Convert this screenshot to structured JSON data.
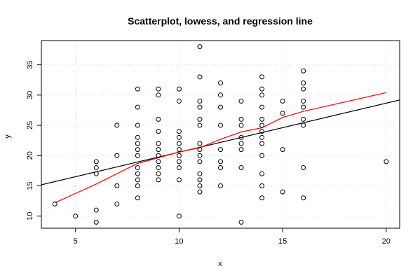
{
  "chart_data": {
    "type": "scatter",
    "title": "Scatterplot, lowess, and regression line",
    "xlabel": "x",
    "ylabel": "y",
    "xlim": [
      3.35,
      20.65
    ],
    "ylim": [
      8.0,
      39.0
    ],
    "x_ticks": [
      5,
      10,
      15,
      20
    ],
    "y_ticks": [
      10,
      15,
      20,
      25,
      30,
      35
    ],
    "x_tick_labels": [
      "5",
      "10",
      "15",
      "20"
    ],
    "y_tick_labels": [
      "10",
      "15",
      "20",
      "25",
      "30",
      "35"
    ],
    "grid": true,
    "colors": {
      "points": "#000000",
      "regression": "#000000",
      "lowess": "#ff0000",
      "grid": "#d9d9d9"
    },
    "points": [
      [
        4,
        12
      ],
      [
        5,
        10
      ],
      [
        6,
        19
      ],
      [
        6,
        18
      ],
      [
        6,
        17
      ],
      [
        6,
        11
      ],
      [
        6,
        9
      ],
      [
        7,
        25
      ],
      [
        7,
        20
      ],
      [
        7,
        15
      ],
      [
        7,
        12
      ],
      [
        8,
        31
      ],
      [
        8,
        28
      ],
      [
        8,
        25
      ],
      [
        8,
        23
      ],
      [
        8,
        22
      ],
      [
        8,
        21
      ],
      [
        8,
        20
      ],
      [
        8,
        18
      ],
      [
        8,
        17
      ],
      [
        8,
        16
      ],
      [
        8,
        15
      ],
      [
        8,
        13
      ],
      [
        9,
        31
      ],
      [
        9,
        30
      ],
      [
        9,
        26
      ],
      [
        9,
        24
      ],
      [
        9,
        22
      ],
      [
        9,
        21
      ],
      [
        9,
        20
      ],
      [
        9,
        19
      ],
      [
        9,
        18
      ],
      [
        9,
        17
      ],
      [
        9,
        16
      ],
      [
        10,
        31
      ],
      [
        10,
        29
      ],
      [
        10,
        24
      ],
      [
        10,
        23
      ],
      [
        10,
        22
      ],
      [
        10,
        21
      ],
      [
        10,
        20
      ],
      [
        10,
        19
      ],
      [
        10,
        18
      ],
      [
        10,
        16
      ],
      [
        10,
        10
      ],
      [
        11,
        38
      ],
      [
        11,
        33
      ],
      [
        11,
        29
      ],
      [
        11,
        28
      ],
      [
        11,
        26
      ],
      [
        11,
        25
      ],
      [
        11,
        22
      ],
      [
        11,
        21
      ],
      [
        11,
        20
      ],
      [
        11,
        19
      ],
      [
        11,
        17
      ],
      [
        11,
        16
      ],
      [
        11,
        15
      ],
      [
        11,
        14
      ],
      [
        12,
        32
      ],
      [
        12,
        30
      ],
      [
        12,
        28
      ],
      [
        12,
        25
      ],
      [
        12,
        21
      ],
      [
        12,
        19
      ],
      [
        12,
        18
      ],
      [
        12,
        15
      ],
      [
        13,
        29
      ],
      [
        13,
        26
      ],
      [
        13,
        25
      ],
      [
        13,
        23
      ],
      [
        13,
        22
      ],
      [
        13,
        21
      ],
      [
        13,
        18
      ],
      [
        13,
        9
      ],
      [
        14,
        33
      ],
      [
        14,
        31
      ],
      [
        14,
        30
      ],
      [
        14,
        28
      ],
      [
        14,
        26
      ],
      [
        14,
        25
      ],
      [
        14,
        24
      ],
      [
        14,
        23
      ],
      [
        14,
        22
      ],
      [
        14,
        20
      ],
      [
        14,
        17
      ],
      [
        14,
        15
      ],
      [
        14,
        13
      ],
      [
        15,
        29
      ],
      [
        15,
        27
      ],
      [
        15,
        21
      ],
      [
        15,
        14
      ],
      [
        16,
        34
      ],
      [
        16,
        32
      ],
      [
        16,
        31
      ],
      [
        16,
        29
      ],
      [
        16,
        28
      ],
      [
        16,
        26
      ],
      [
        16,
        25
      ],
      [
        16,
        18
      ],
      [
        16,
        13
      ],
      [
        20,
        19
      ]
    ],
    "regression_line": {
      "intercept": 12.46,
      "slope": 0.81
    },
    "lowess": [
      [
        4,
        12.2
      ],
      [
        6,
        15.3
      ],
      [
        8,
        18.7
      ],
      [
        10,
        20.6
      ],
      [
        11,
        21.3
      ],
      [
        12,
        22.7
      ],
      [
        13,
        23.9
      ],
      [
        14,
        24.6
      ],
      [
        15,
        26.3
      ],
      [
        16,
        27.3
      ],
      [
        20,
        30.4
      ]
    ]
  }
}
